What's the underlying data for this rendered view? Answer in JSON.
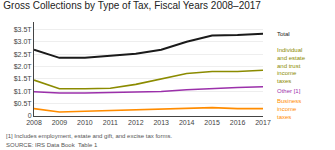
{
  "chart_data": {
    "type": "line",
    "title": "Gross Collections by Type of Tax, Fiscal Years 2008–2017",
    "x": [
      2008,
      2009,
      2010,
      2011,
      2012,
      2013,
      2014,
      2015,
      2016,
      2017
    ],
    "series": [
      {
        "name": "Total",
        "color": "#1a1a1a",
        "values": [
          2.68,
          2.35,
          2.35,
          2.42,
          2.52,
          2.68,
          3.0,
          3.25,
          3.27,
          3.33
        ]
      },
      {
        "name": "Individual\nand estate\nand trust\nincome\ntaxes",
        "color": "#8B8B00",
        "values": [
          1.45,
          1.1,
          1.1,
          1.12,
          1.28,
          1.5,
          1.72,
          1.8,
          1.8,
          1.85
        ]
      },
      {
        "name": "Other [1]",
        "color": "#9B30AA",
        "values": [
          0.98,
          0.93,
          0.93,
          0.95,
          0.97,
          0.99,
          1.06,
          1.12,
          1.15,
          1.18
        ]
      },
      {
        "name": "Business\nincome\ntaxes",
        "color": "#FF8C00",
        "values": [
          0.3,
          0.16,
          0.19,
          0.22,
          0.27,
          0.29,
          0.32,
          0.34,
          0.3,
          0.3
        ]
      }
    ],
    "xlim": [
      2008,
      2017
    ],
    "xticks": [
      2008,
      2009,
      2010,
      2011,
      2012,
      2013,
      2014,
      2015,
      2016,
      2017
    ],
    "ylim": [
      0,
      3.8
    ],
    "yticks": [
      0,
      {
        "value": 0.5,
        "label": "$0.5T"
      },
      {
        "value": 1.0,
        "label": "$1.0T"
      },
      {
        "value": 1.5,
        "label": "$1.5T"
      },
      {
        "value": 2.0,
        "label": "$2.0T"
      },
      {
        "value": 2.5,
        "label": "$2.5T"
      },
      {
        "value": 3.0,
        "label": "$3.0T"
      },
      {
        "value": 3.5,
        "label": "$3.5T"
      }
    ],
    "grid": true,
    "annotations": [
      "[1] Includes employment, estate and gift, and excise tax forms.",
      "SOURCE: IRS Data Book  Table 1"
    ]
  }
}
